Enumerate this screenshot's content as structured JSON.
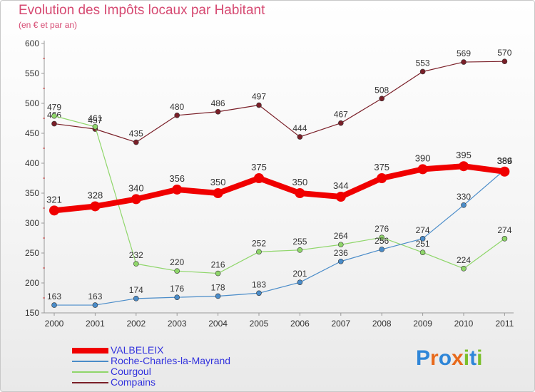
{
  "title": "Evolution des Impôts locaux par Habitant",
  "subtitle": "(en € et par an)",
  "logo": {
    "text": "Proxiti",
    "letters": [
      {
        "ch": "P",
        "color": "#2f86d8"
      },
      {
        "ch": "r",
        "color": "#e86a1c"
      },
      {
        "ch": "o",
        "color": "#2f86d8"
      },
      {
        "ch": "x",
        "color": "#e86a1c"
      },
      {
        "ch": "i",
        "color": "#7bbf2a"
      },
      {
        "ch": "t",
        "color": "#2f86d8"
      },
      {
        "ch": "i",
        "color": "#7bbf2a"
      }
    ]
  },
  "chart_data": {
    "type": "line",
    "x": [
      "2000",
      "2001",
      "2002",
      "2003",
      "2004",
      "2005",
      "2006",
      "2007",
      "2008",
      "2009",
      "2010",
      "2011"
    ],
    "ylim": [
      150,
      600
    ],
    "yticks": [
      150,
      200,
      250,
      300,
      350,
      400,
      450,
      500,
      550,
      600
    ],
    "grid": false,
    "legend_position": "bottom-left",
    "series": [
      {
        "name": "Compains",
        "color": "#7a1f28",
        "values": [
          466,
          457,
          435,
          480,
          486,
          497,
          444,
          467,
          508,
          553,
          569,
          570
        ]
      },
      {
        "name": "Courgoul",
        "color": "#8fd66a",
        "values": [
          479,
          461,
          232,
          220,
          216,
          252,
          255,
          264,
          276,
          251,
          224,
          274
        ]
      },
      {
        "name": "Roche-Charles-la-Mayrand",
        "color": "#4a8cc9",
        "values": [
          163,
          163,
          174,
          176,
          178,
          183,
          201,
          236,
          256,
          274,
          330,
          389
        ]
      },
      {
        "name": "VALBELEIX",
        "color": "#f00000",
        "values": [
          321,
          328,
          340,
          356,
          350,
          375,
          350,
          344,
          375,
          390,
          395,
          386
        ]
      }
    ],
    "legend_order": [
      "VALBELEIX",
      "Roche-Charles-la-Mayrand",
      "Courgoul",
      "Compains"
    ]
  }
}
